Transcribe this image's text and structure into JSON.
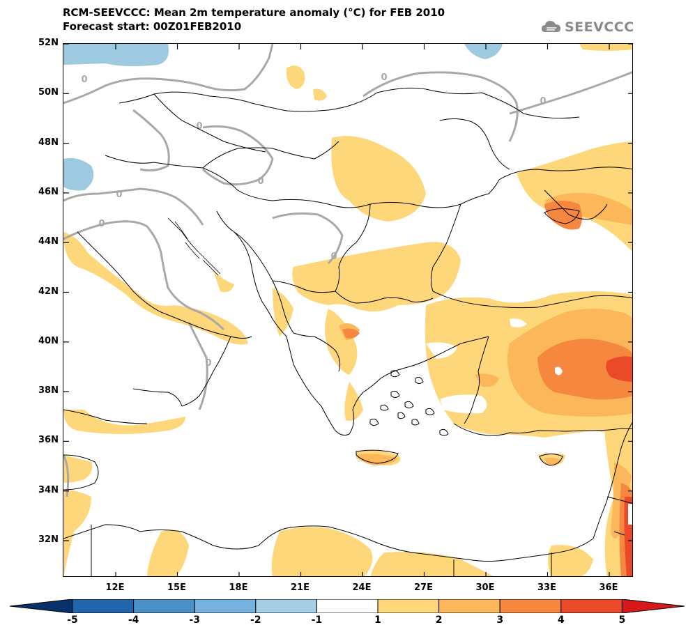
{
  "header": {
    "title": "RCM-SEEVCCC: Mean 2m temperature anomaly (°C) for FEB 2010",
    "subtitle": "Forecast start: 00Z01FEB2010"
  },
  "logo": {
    "text": "SEEVCCC",
    "icon": "cloud-logo-icon"
  },
  "map": {
    "lat_labels": [
      "52N",
      "50N",
      "48N",
      "46N",
      "44N",
      "42N",
      "40N",
      "38N",
      "36N",
      "34N",
      "32N"
    ],
    "lon_labels": [
      "12E",
      "15E",
      "18E",
      "21E",
      "24E",
      "27E",
      "30E",
      "33E",
      "36E"
    ],
    "lat_range": [
      30.6,
      52
    ],
    "lon_range": [
      9,
      37
    ],
    "contour_label": "0",
    "colors": {
      "land_bg": "#ffffff",
      "anom_1_2": "#fdd77a",
      "anom_2_3": "#fbb75a",
      "anom_3_4": "#f6873f",
      "anom_4_5": "#ea4a2a",
      "anom_neg_1_2": "#9ecae1",
      "contour": "#a8a8a8",
      "borders": "#000000"
    }
  },
  "colorbar": {
    "labels": [
      "-5",
      "-4",
      "-3",
      "-2",
      "-1",
      "1",
      "2",
      "3",
      "4",
      "5"
    ],
    "colors": [
      "#08306b",
      "#2166ac",
      "#4a90c8",
      "#75b2dd",
      "#a6cde6",
      "#ffffff",
      "#fdd77a",
      "#fbb75a",
      "#f6873f",
      "#ea4a2a",
      "#d7191c"
    ]
  }
}
